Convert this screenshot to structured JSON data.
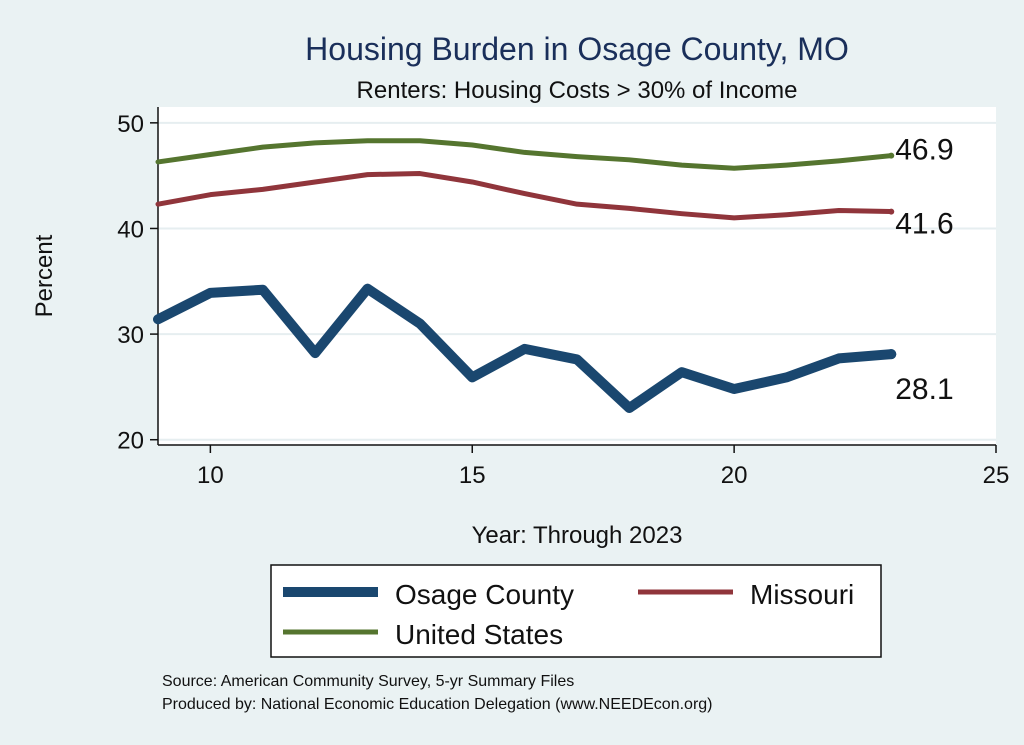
{
  "chart_data": {
    "type": "line",
    "title": "Housing Burden in Osage County, MO",
    "subtitle": "Renters: Housing Costs > 30% of Income",
    "xlabel": "Year: Through 2023",
    "ylabel": "Percent",
    "xlim": [
      9,
      25
    ],
    "ylim": [
      19.5,
      51.5
    ],
    "x_ticks": [
      10,
      15,
      20,
      25
    ],
    "y_ticks": [
      20,
      30,
      40,
      50
    ],
    "x": [
      9,
      10,
      11,
      12,
      13,
      14,
      15,
      16,
      17,
      18,
      19,
      20,
      21,
      22,
      23
    ],
    "series": [
      {
        "name": "Osage County",
        "color": "#1a476f",
        "values": [
          31.4,
          33.9,
          34.2,
          28.2,
          34.3,
          31.0,
          25.9,
          28.6,
          27.6,
          23.0,
          26.4,
          24.8,
          25.9,
          27.7,
          28.1
        ],
        "end_label": "28.1"
      },
      {
        "name": "Missouri",
        "color": "#90353b",
        "values": [
          42.3,
          43.2,
          43.7,
          44.4,
          45.1,
          45.2,
          44.4,
          43.3,
          42.3,
          41.9,
          41.4,
          41.0,
          41.3,
          41.7,
          41.6
        ],
        "end_label": "41.6"
      },
      {
        "name": "United States",
        "color": "#55752f",
        "values": [
          46.3,
          47.0,
          47.7,
          48.1,
          48.3,
          48.3,
          47.9,
          47.2,
          46.8,
          46.5,
          46.0,
          45.7,
          46.0,
          46.4,
          46.9
        ],
        "end_label": "46.9"
      }
    ],
    "legend": {
      "position": "bottom",
      "entries": [
        "Osage County",
        "Missouri",
        "United States"
      ]
    },
    "grid": true,
    "footer_lines": [
      "Source: American Community Survey, 5-yr Summary Files",
      "Produced by: National Economic Education Delegation (www.NEEDEcon.org)"
    ]
  }
}
